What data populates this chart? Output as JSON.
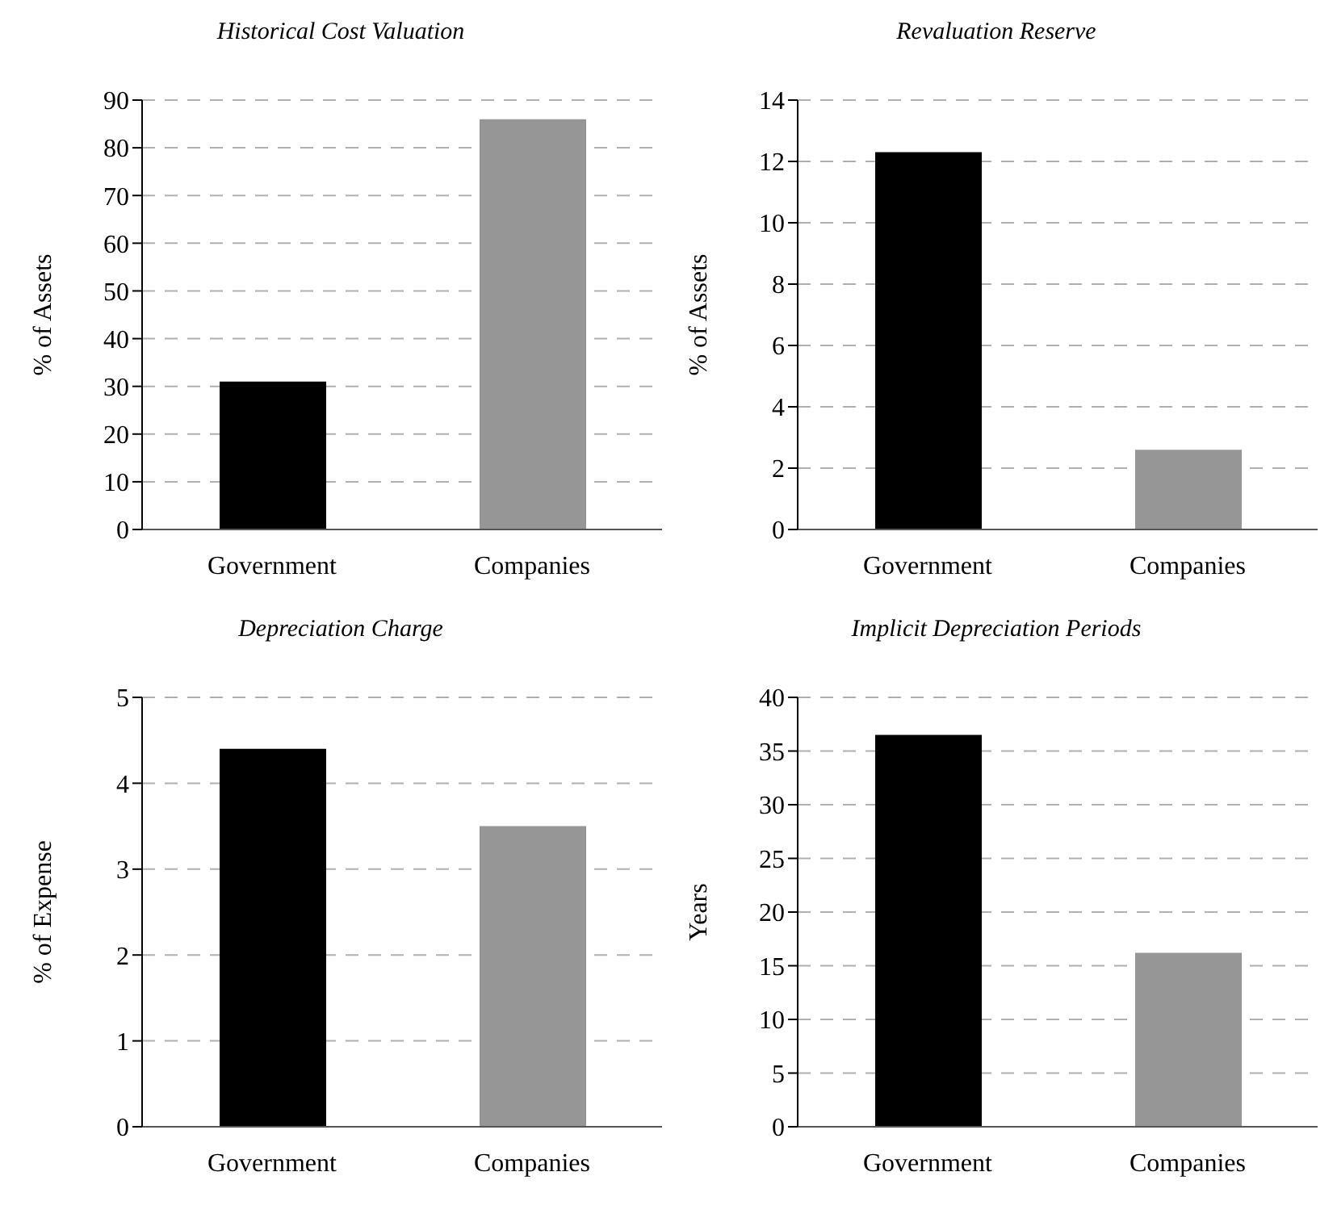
{
  "chart_data": [
    {
      "type": "bar",
      "title": "Historical Cost Valuation",
      "ylabel": "% of Assets",
      "categories": [
        "Government",
        "Companies"
      ],
      "values": [
        31,
        86
      ],
      "colors": [
        "#000000",
        "#969696"
      ],
      "ylim": [
        0,
        90
      ],
      "yticks": [
        0,
        10,
        20,
        30,
        40,
        50,
        60,
        70,
        80,
        90
      ],
      "grid": "y"
    },
    {
      "type": "bar",
      "title": "Revaluation Reserve",
      "ylabel": "% of Assets",
      "categories": [
        "Government",
        "Companies"
      ],
      "values": [
        12.3,
        2.6
      ],
      "colors": [
        "#000000",
        "#969696"
      ],
      "ylim": [
        0,
        14
      ],
      "yticks": [
        0,
        2,
        4,
        6,
        8,
        10,
        12,
        14
      ],
      "grid": "y"
    },
    {
      "type": "bar",
      "title": "Depreciation Charge",
      "ylabel": "% of Expense",
      "categories": [
        "Government",
        "Companies"
      ],
      "values": [
        4.4,
        3.5
      ],
      "colors": [
        "#000000",
        "#969696"
      ],
      "ylim": [
        0,
        5
      ],
      "yticks": [
        0,
        1,
        2,
        3,
        4,
        5
      ],
      "grid": "y"
    },
    {
      "type": "bar",
      "title": "Implicit Depreciation Periods",
      "ylabel": "Years",
      "categories": [
        "Government",
        "Companies"
      ],
      "values": [
        36.5,
        16.2
      ],
      "colors": [
        "#000000",
        "#969696"
      ],
      "ylim": [
        0,
        40
      ],
      "yticks": [
        0,
        5,
        10,
        15,
        20,
        25,
        30,
        35,
        40
      ],
      "grid": "y"
    }
  ]
}
